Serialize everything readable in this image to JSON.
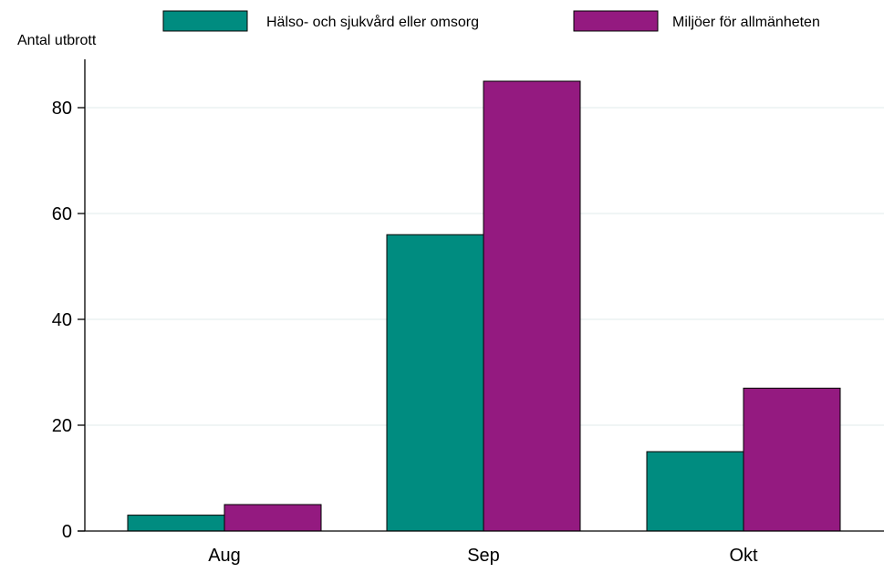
{
  "chart_data": {
    "type": "bar",
    "title": "",
    "xlabel": "",
    "ylabel": "Antal utbrott",
    "categories": [
      "Aug",
      "Sep",
      "Okt"
    ],
    "series": [
      {
        "name": "Hälso- och sjukvård eller omsorg",
        "color": "#008C80",
        "values": [
          3,
          56,
          15
        ]
      },
      {
        "name": "Miljöer för allmänheten",
        "color": "#941A80",
        "values": [
          5,
          85,
          27
        ]
      }
    ],
    "ylim": [
      0,
      89
    ],
    "yticks": [
      0,
      20,
      40,
      60,
      80
    ],
    "grid": true,
    "legend_position": "top"
  }
}
